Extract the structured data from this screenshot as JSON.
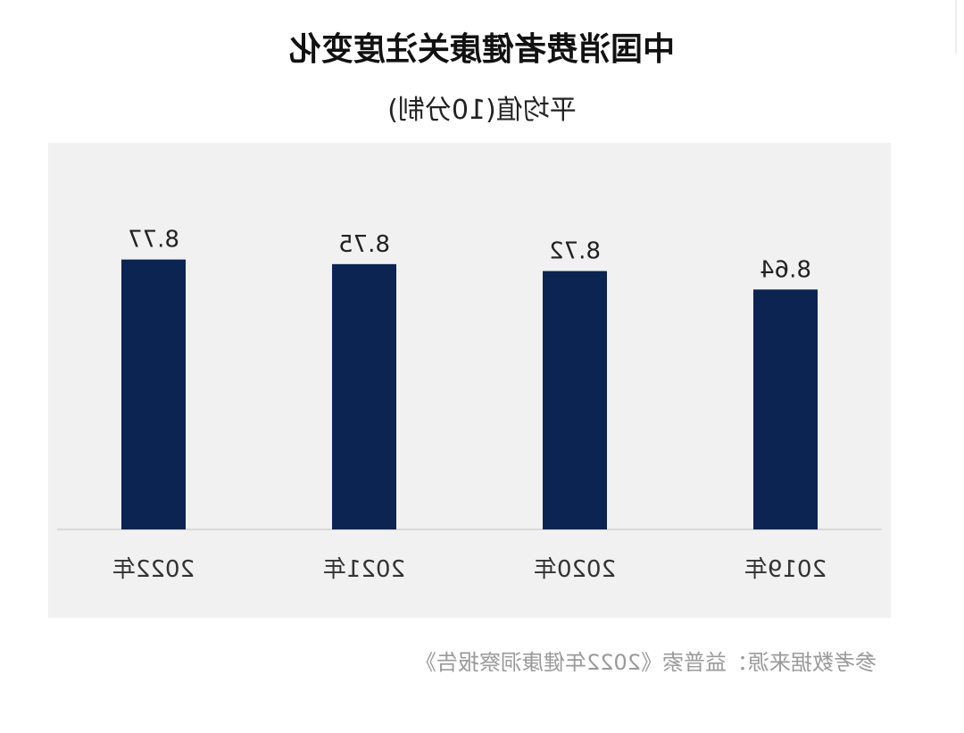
{
  "chart_data": {
    "type": "bar",
    "title": "中国消费者健康关注度变化",
    "subtitle": "平均值(10分制)",
    "categories": [
      "2019年",
      "2020年",
      "2021年",
      "2022年"
    ],
    "series": [
      {
        "values": [
          8.64,
          8.72,
          8.75,
          8.77
        ]
      }
    ],
    "value_labels": [
      "8.64",
      "8.72",
      "8.75",
      "8.77"
    ],
    "ylim": [
      7.6,
      8.85
    ],
    "grid": false,
    "legend": "none",
    "bar_color": "#0b2451",
    "background_color": "#f1f1f1"
  },
  "footer": {
    "source": "参考数据来源：益普索《2022年健康洞察报告》"
  }
}
